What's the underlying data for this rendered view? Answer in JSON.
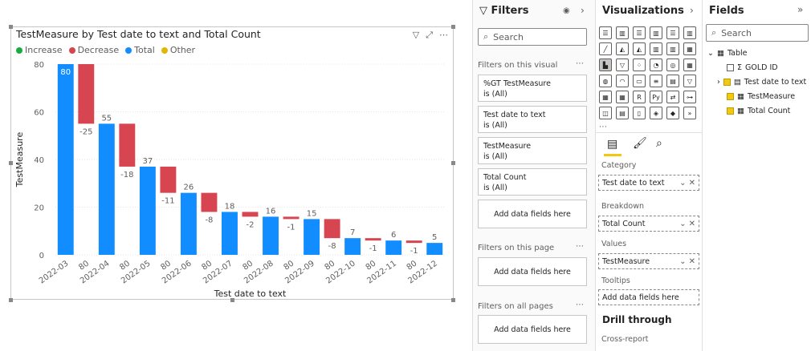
{
  "chart_data": {
    "type": "waterfall",
    "title": "TestMeasure by Test date to text and Total Count",
    "xlabel": "Test date to text",
    "ylabel": "TestMeasure",
    "ylim": [
      0,
      80
    ],
    "yticks": [
      0,
      20,
      40,
      60,
      80
    ],
    "legend": [
      {
        "name": "Increase",
        "color": "#1aab40"
      },
      {
        "name": "Decrease",
        "color": "#d64550"
      },
      {
        "name": "Total",
        "color": "#118dff"
      },
      {
        "name": "Other",
        "color": "#e3b505"
      }
    ],
    "steps": [
      {
        "label": "2022-03",
        "kind": "total",
        "start": 0,
        "end": 80,
        "text": "80"
      },
      {
        "label": "80",
        "kind": "decrease",
        "start": 80,
        "end": 55,
        "text": "-25"
      },
      {
        "label": "2022-04",
        "kind": "total",
        "start": 0,
        "end": 55,
        "text": "55"
      },
      {
        "label": "80",
        "kind": "decrease",
        "start": 55,
        "end": 37,
        "text": "-18"
      },
      {
        "label": "2022-05",
        "kind": "total",
        "start": 0,
        "end": 37,
        "text": "37"
      },
      {
        "label": "80",
        "kind": "decrease",
        "start": 37,
        "end": 26,
        "text": "-11"
      },
      {
        "label": "2022-06",
        "kind": "total",
        "start": 0,
        "end": 26,
        "text": "26"
      },
      {
        "label": "80",
        "kind": "decrease",
        "start": 26,
        "end": 18,
        "text": "-8"
      },
      {
        "label": "2022-07",
        "kind": "total",
        "start": 0,
        "end": 18,
        "text": "18"
      },
      {
        "label": "80",
        "kind": "decrease",
        "start": 18,
        "end": 16,
        "text": "-2"
      },
      {
        "label": "2022-08",
        "kind": "total",
        "start": 0,
        "end": 16,
        "text": "16"
      },
      {
        "label": "80",
        "kind": "decrease",
        "start": 16,
        "end": 15,
        "text": "-1"
      },
      {
        "label": "2022-09",
        "kind": "total",
        "start": 0,
        "end": 15,
        "text": "15"
      },
      {
        "label": "80",
        "kind": "decrease",
        "start": 15,
        "end": 7,
        "text": "-8"
      },
      {
        "label": "2022-10",
        "kind": "total",
        "start": 0,
        "end": 7,
        "text": "7"
      },
      {
        "label": "80",
        "kind": "decrease",
        "start": 7,
        "end": 6,
        "text": "-1"
      },
      {
        "label": "2022-11",
        "kind": "total",
        "start": 0,
        "end": 6,
        "text": "6"
      },
      {
        "label": "80",
        "kind": "decrease",
        "start": 6,
        "end": 5,
        "text": "-1"
      },
      {
        "label": "2022-12",
        "kind": "total",
        "start": 0,
        "end": 5,
        "text": "5"
      }
    ]
  },
  "filters": {
    "title": "Filters",
    "search_placeholder": "Search",
    "on_visual_label": "Filters on this visual",
    "visual_cards": [
      {
        "name": "%GT TestMeasure",
        "state": "is (All)"
      },
      {
        "name": "Test date to text",
        "state": "is (All)"
      },
      {
        "name": "TestMeasure",
        "state": "is (All)"
      },
      {
        "name": "Total Count",
        "state": "is (All)"
      }
    ],
    "add_fields": "Add data fields here",
    "on_page_label": "Filters on this page",
    "on_all_label": "Filters on all pages"
  },
  "visualizations": {
    "title": "Visualizations",
    "wells": [
      {
        "label": "Category",
        "value": "Test date to text"
      },
      {
        "label": "Breakdown",
        "value": "Total Count"
      },
      {
        "label": "Values",
        "value": "TestMeasure"
      }
    ],
    "tooltips_label": "Tooltips",
    "tooltips_placeholder": "Add data fields here",
    "drill_title": "Drill through",
    "cross_report": "Cross-report"
  },
  "fields": {
    "title": "Fields",
    "search_placeholder": "Search",
    "table_name": "Table",
    "items": [
      {
        "name": "GOLD ID",
        "checked": false
      },
      {
        "name": "Test date to text",
        "checked": true
      },
      {
        "name": "TestMeasure",
        "checked": true
      },
      {
        "name": "Total Count",
        "checked": true
      }
    ]
  }
}
